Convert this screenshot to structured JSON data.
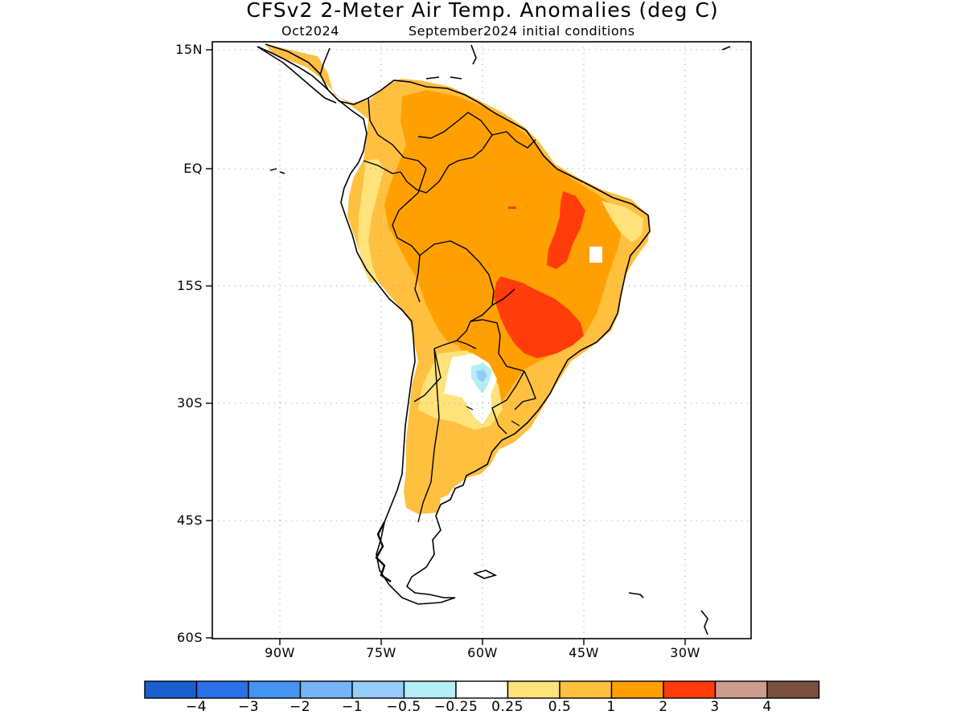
{
  "title": "CFSv2 2-Meter Air Temp. Anomalies (deg C)",
  "subtitle_left": "Oct2024",
  "subtitle_right": "September2024 initial conditions",
  "latitude_ticks": [
    "15N",
    "EQ",
    "15S",
    "30S",
    "45S",
    "60S"
  ],
  "longitude_ticks": [
    "90W",
    "75W",
    "60W",
    "45W",
    "30W"
  ],
  "colorbar": {
    "colors": [
      "#1a5fcf",
      "#2a70e8",
      "#4494f0",
      "#78b4f5",
      "#96ccf7",
      "#b4eef7",
      "#ffffff",
      "#ffe27a",
      "#ffc040",
      "#ffa000",
      "#ff3c0a",
      "#cc9c8f",
      "#7a5040"
    ],
    "labels": [
      "−4",
      "−3",
      "−2",
      "−1",
      "−0.5",
      "−0.25",
      "0.25",
      "0.5",
      "1",
      "2",
      "3",
      "4"
    ]
  }
}
